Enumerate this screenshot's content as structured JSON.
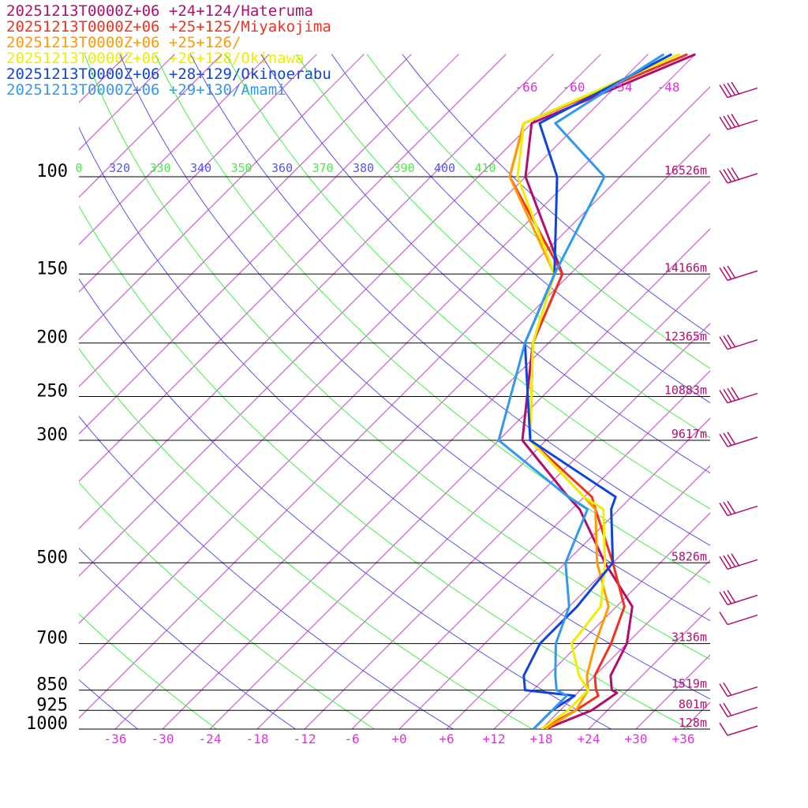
{
  "chart_data": {
    "type": "line",
    "chart_kind": "skew-T log-P sounding",
    "legend": [
      {
        "label": "20251213T0000Z+06 +24+124/Hateruma",
        "color": "#b0106b"
      },
      {
        "label": "20251213T0000Z+06 +25+125/Miyakojima",
        "color": "#ee3322"
      },
      {
        "label": "20251213T0000Z+06 +25+126/",
        "color": "#ff9a00"
      },
      {
        "label": "20251213T0000Z+06 +26+128/Okinawa",
        "color": "#eeee00"
      },
      {
        "label": "20251213T0000Z+06 +28+129/Okinoerabu",
        "color": "#1144dd"
      },
      {
        "label": "20251213T0000Z+06 +29+130/Amami",
        "color": "#3399ee"
      }
    ],
    "pressure_levels": [
      {
        "label": "100",
        "p": 100,
        "height": "16526m"
      },
      {
        "label": "150",
        "p": 150,
        "height": "14166m"
      },
      {
        "label": "200",
        "p": 200,
        "height": "12365m"
      },
      {
        "label": "250",
        "p": 250,
        "height": "10883m"
      },
      {
        "label": "300",
        "p": 300,
        "height": "9617m"
      },
      {
        "label": "500",
        "p": 500,
        "height": "5826m"
      },
      {
        "label": "700",
        "p": 700,
        "height": "3136m"
      },
      {
        "label": "850",
        "p": 850,
        "height": "1519m"
      },
      {
        "label": "925",
        "p": 925,
        "height": "801m"
      },
      {
        "label": "1000",
        "p": 1000,
        "height": "128m"
      }
    ],
    "x_tick_labels": [
      "-36",
      "-30",
      "-24",
      "-18",
      "-12",
      "-6",
      "+0",
      "+6",
      "+12",
      "+18",
      "+24",
      "+30",
      "+36"
    ],
    "x_tick_values": [
      -36,
      -30,
      -24,
      -18,
      -12,
      -6,
      0,
      6,
      12,
      18,
      24,
      30,
      36
    ],
    "isotherm_top_labels": [
      "-66",
      "-60",
      "-54",
      "-48"
    ],
    "theta_labels": [
      {
        "label": "0",
        "color": "#44ee44"
      },
      {
        "label": "320",
        "color": "#5555ee"
      },
      {
        "label": "330",
        "color": "#44ee44"
      },
      {
        "label": "340",
        "color": "#5555ee"
      },
      {
        "label": "350",
        "color": "#44ee44"
      },
      {
        "label": "360",
        "color": "#5555ee"
      },
      {
        "label": "370",
        "color": "#44ee44"
      },
      {
        "label": "380",
        "color": "#5555ee"
      },
      {
        "label": "390",
        "color": "#44ee44"
      },
      {
        "label": "400",
        "color": "#5555ee"
      },
      {
        "label": "410",
        "color": "#44ee44"
      }
    ],
    "xlim": [
      -42,
      38
    ],
    "ylim_hPa": [
      1000,
      60
    ],
    "grid": true,
    "colors": {
      "isotherm": "#dd33dd",
      "theta_a": "#44ee44",
      "theta_b": "#5555ee",
      "isobar": "#000000",
      "label": "#b0106b"
    },
    "series": [
      {
        "color": "#b0106b",
        "points": [
          [
            18.5,
            1000
          ],
          [
            22,
            925
          ],
          [
            23,
            860
          ],
          [
            22,
            850
          ],
          [
            20,
            800
          ],
          [
            18,
            700
          ],
          [
            14,
            600
          ],
          [
            5,
            500
          ],
          [
            -5,
            400
          ],
          [
            -8,
            380
          ],
          [
            -21,
            300
          ],
          [
            -32,
            200
          ],
          [
            -37,
            150
          ],
          [
            -54,
            100
          ],
          [
            -60,
            80
          ],
          [
            -48,
            60
          ]
        ]
      },
      {
        "color": "#ee3322",
        "points": [
          [
            18,
            1000
          ],
          [
            20,
            925
          ],
          [
            21,
            870
          ],
          [
            20,
            850
          ],
          [
            18,
            800
          ],
          [
            16,
            700
          ],
          [
            13,
            600
          ],
          [
            6,
            500
          ],
          [
            -3,
            400
          ],
          [
            -5,
            380
          ],
          [
            -20,
            300
          ],
          [
            -32,
            200
          ],
          [
            -37,
            150
          ],
          [
            -56,
            100
          ],
          [
            -61,
            80
          ],
          [
            -49,
            60
          ]
        ]
      },
      {
        "color": "#ff9a00",
        "points": [
          [
            18.5,
            1000
          ],
          [
            20,
            925
          ],
          [
            19,
            850
          ],
          [
            17,
            800
          ],
          [
            14,
            700
          ],
          [
            11,
            600
          ],
          [
            4,
            500
          ],
          [
            -3,
            400
          ],
          [
            -6,
            380
          ],
          [
            -20,
            300
          ],
          [
            -32,
            200
          ],
          [
            -38,
            150
          ],
          [
            -56,
            100
          ],
          [
            -61,
            80
          ],
          [
            -50,
            60
          ]
        ]
      },
      {
        "color": "#eeee00",
        "points": [
          [
            18,
            1000
          ],
          [
            19,
            925
          ],
          [
            19,
            850
          ],
          [
            16,
            800
          ],
          [
            11,
            700
          ],
          [
            10,
            600
          ],
          [
            5,
            500
          ],
          [
            -2,
            400
          ],
          [
            -6,
            380
          ],
          [
            -20,
            300
          ],
          [
            -32,
            200
          ],
          [
            -38,
            150
          ],
          [
            -55,
            100
          ],
          [
            -61,
            80
          ],
          [
            -50,
            60
          ]
        ]
      },
      {
        "color": "#1144dd",
        "points": [
          [
            17,
            1000
          ],
          [
            17,
            925
          ],
          [
            18,
            870
          ],
          [
            11,
            850
          ],
          [
            9,
            800
          ],
          [
            7,
            700
          ],
          [
            7,
            600
          ],
          [
            6,
            500
          ],
          [
            -1,
            400
          ],
          [
            -2,
            380
          ],
          [
            -20,
            300
          ],
          [
            -33,
            200
          ],
          [
            -38,
            150
          ],
          [
            -50,
            100
          ],
          [
            -59,
            80
          ],
          [
            -51,
            60
          ]
        ]
      },
      {
        "color": "#3399ee",
        "points": [
          [
            17,
            1000
          ],
          [
            17,
            925
          ],
          [
            17,
            870
          ],
          [
            15,
            850
          ],
          [
            13,
            800
          ],
          [
            9,
            700
          ],
          [
            6,
            600
          ],
          [
            0,
            500
          ],
          [
            -4,
            400
          ],
          [
            -8,
            380
          ],
          [
            -24,
            300
          ],
          [
            -33,
            200
          ],
          [
            -38,
            150
          ],
          [
            -44,
            100
          ],
          [
            -57,
            80
          ],
          [
            -52,
            60
          ]
        ]
      }
    ],
    "wind_barbs": [
      {
        "p": 80,
        "speed": 40
      },
      {
        "p": 70,
        "speed": 45
      },
      {
        "p": 100,
        "speed": 40
      },
      {
        "p": 150,
        "speed": 25
      },
      {
        "p": 200,
        "speed": 30
      },
      {
        "p": 250,
        "speed": 35
      },
      {
        "p": 300,
        "speed": 30
      },
      {
        "p": 400,
        "speed": 30
      },
      {
        "p": 500,
        "speed": 60
      },
      {
        "p": 580,
        "speed": 25
      },
      {
        "p": 630,
        "speed": 10
      },
      {
        "p": 850,
        "speed": 15
      },
      {
        "p": 925,
        "speed": 15
      },
      {
        "p": 1000,
        "speed": 10
      }
    ]
  }
}
